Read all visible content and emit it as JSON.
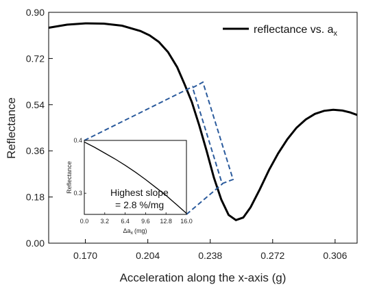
{
  "chart_data": [
    {
      "type": "line",
      "title": "",
      "xlabel": "Acceleration along the x-axis (g)",
      "ylabel": "Reflectance",
      "xlim": [
        0.15,
        0.318
      ],
      "ylim": [
        0.0,
        0.9
      ],
      "xticks": [
        "0.170",
        "0.204",
        "0.238",
        "0.272",
        "0.306"
      ],
      "yticks": [
        "0.00",
        "0.18",
        "0.36",
        "0.54",
        "0.72",
        "0.90"
      ],
      "grid": false,
      "legend": "top-right",
      "series": [
        {
          "name": "reflectance vs. a",
          "name_subscript": "x",
          "color": "#000000",
          "x": [
            0.15,
            0.16,
            0.17,
            0.18,
            0.19,
            0.2,
            0.205,
            0.21,
            0.215,
            0.22,
            0.224,
            0.228,
            0.232,
            0.236,
            0.24,
            0.244,
            0.248,
            0.252,
            0.256,
            0.26,
            0.265,
            0.27,
            0.275,
            0.28,
            0.285,
            0.29,
            0.295,
            0.3,
            0.305,
            0.31,
            0.314,
            0.318
          ],
          "y": [
            0.84,
            0.852,
            0.857,
            0.856,
            0.848,
            0.827,
            0.81,
            0.785,
            0.745,
            0.686,
            0.62,
            0.55,
            0.46,
            0.36,
            0.255,
            0.17,
            0.11,
            0.09,
            0.1,
            0.14,
            0.21,
            0.285,
            0.35,
            0.405,
            0.45,
            0.482,
            0.504,
            0.516,
            0.52,
            0.517,
            0.51,
            0.5
          ]
        }
      ],
      "zoom_box_color": "#2a5a9c"
    },
    {
      "type": "line",
      "title": "",
      "xlabel": "Δa",
      "xlabel_subscript": "x",
      "xlabel_unit": "(mg)",
      "ylabel": "Reflectance",
      "xlim": [
        0.0,
        16.0
      ],
      "ylim": [
        0.26,
        0.4
      ],
      "xticks": [
        "0.0",
        "3.2",
        "6.4",
        "9.6",
        "12.8",
        "16.0"
      ],
      "yticks": [
        "0.3",
        "0.4"
      ],
      "series": [
        {
          "name": "",
          "color": "#000000",
          "x": [
            0.0,
            1.6,
            3.2,
            4.8,
            6.4,
            8.0,
            9.6,
            11.2,
            12.8,
            14.4,
            16.0
          ],
          "y": [
            0.397,
            0.387,
            0.376,
            0.365,
            0.353,
            0.34,
            0.326,
            0.311,
            0.296,
            0.279,
            0.262
          ]
        }
      ],
      "annotation": [
        "Highest slope",
        "= 2.8 %/mg"
      ]
    }
  ]
}
